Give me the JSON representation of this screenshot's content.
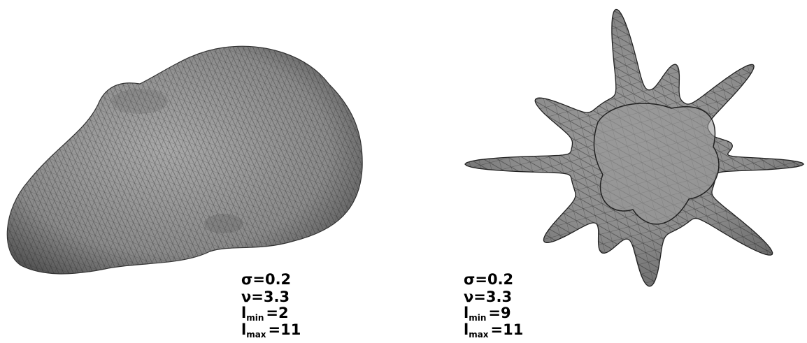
{
  "panels": [
    {
      "sigma": "σ=0.2",
      "nu": "ν=3.3",
      "lmin": {
        "symbol": "l",
        "sub": "min",
        "value": "=2"
      },
      "lmax": {
        "symbol": "l",
        "sub": "max",
        "value": "=11"
      }
    },
    {
      "sigma": "σ=0.2",
      "nu": "ν=3.3",
      "lmin": {
        "symbol": "l",
        "sub": "min",
        "value": "=9"
      },
      "lmax": {
        "symbol": "l",
        "sub": "max",
        "value": "=11"
      }
    }
  ]
}
